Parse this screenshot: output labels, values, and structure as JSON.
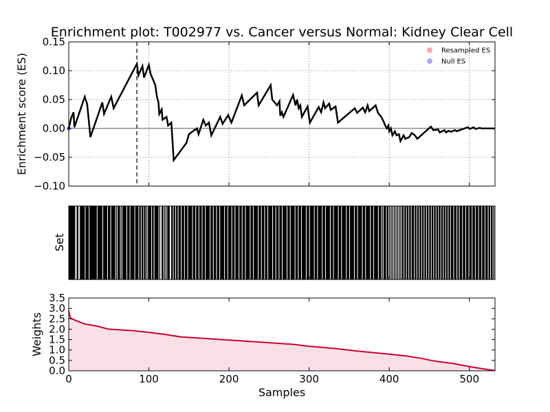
{
  "chart_data": [
    {
      "type": "line",
      "title": "Enrichment plot: T002977 vs. Cancer versus Normal: Kidney Clear Cell",
      "ylabel": "Enrichment score (ES)",
      "xlim": [
        0,
        532
      ],
      "ylim": [
        -0.1,
        0.15
      ],
      "yticks": [
        "0.15",
        "0.10",
        "0.05",
        "0.00",
        "−0.05",
        "−0.10"
      ],
      "ytick_values": [
        0.15,
        0.1,
        0.05,
        0.0,
        -0.05,
        -0.1
      ],
      "grid": true,
      "legend_position": "top-right",
      "legend": [
        {
          "label": "Resampled ES",
          "color": "#ffaaaa"
        },
        {
          "label": "Null ES",
          "color": "#aaaaff"
        }
      ],
      "peak_x": 85,
      "series": [
        {
          "color": "#000000",
          "x": [
            0,
            3,
            6,
            7,
            20,
            23,
            27,
            42,
            44,
            53,
            56,
            85,
            87,
            92,
            94,
            100,
            102,
            108,
            110,
            112,
            113,
            116,
            117,
            122,
            124,
            128,
            131,
            147,
            150,
            160,
            162,
            168,
            171,
            175,
            178,
            189,
            192,
            199,
            203,
            216,
            219,
            235,
            237,
            252,
            254,
            257,
            260,
            263,
            264,
            266,
            268,
            280,
            283,
            285,
            287,
            289,
            291,
            298,
            301,
            312,
            315,
            318,
            320,
            325,
            327,
            333,
            336,
            357,
            360,
            367,
            370,
            373,
            375,
            383,
            386,
            390,
            393,
            395,
            397,
            399,
            400,
            402,
            404,
            407,
            409,
            412,
            414,
            418,
            420,
            425,
            428,
            432,
            435,
            452,
            455,
            461,
            463,
            469,
            471,
            474,
            477,
            482,
            484,
            498,
            501,
            505,
            508,
            513,
            515,
            532
          ],
          "y": [
            0.0,
            0.018,
            0.028,
            0.002,
            0.055,
            0.042,
            -0.015,
            0.045,
            0.025,
            0.055,
            0.035,
            0.112,
            0.092,
            0.108,
            0.088,
            0.11,
            0.095,
            0.075,
            0.055,
            0.045,
            0.025,
            0.033,
            0.015,
            0.02,
            0.005,
            0.01,
            -0.055,
            -0.025,
            -0.01,
            0.0,
            -0.01,
            0.015,
            0.005,
            0.01,
            -0.012,
            0.02,
            0.008,
            0.023,
            0.01,
            0.057,
            0.04,
            0.062,
            0.04,
            0.075,
            0.05,
            0.045,
            0.04,
            0.047,
            0.022,
            0.028,
            0.02,
            0.058,
            0.04,
            0.05,
            0.035,
            0.04,
            0.02,
            0.038,
            0.01,
            0.037,
            0.028,
            0.045,
            0.035,
            0.043,
            0.032,
            0.038,
            0.01,
            0.035,
            0.027,
            0.036,
            0.028,
            0.04,
            0.03,
            0.04,
            0.027,
            0.02,
            0.012,
            0.005,
            0.0,
            0.005,
            -0.005,
            0.0,
            -0.012,
            -0.005,
            -0.012,
            -0.01,
            -0.022,
            -0.012,
            -0.018,
            -0.015,
            -0.008,
            -0.012,
            -0.018,
            0.003,
            -0.003,
            -0.002,
            -0.007,
            -0.003,
            -0.007,
            -0.004,
            -0.006,
            -0.003,
            -0.005,
            0.002,
            -0.001,
            0.002,
            -0.001,
            0.001,
            0.0,
            0.0
          ]
        }
      ]
    },
    {
      "type": "barcode",
      "ylabel": "Set",
      "xlim": [
        0,
        532
      ],
      "series": [
        {
          "color": "#000000",
          "gap_positions": [
            8,
            9,
            12,
            13,
            20,
            25,
            35,
            42,
            48,
            52,
            58,
            60,
            64,
            66,
            72,
            76,
            82,
            87,
            90,
            93,
            96,
            98,
            103,
            106,
            112,
            114,
            115,
            118,
            120,
            122,
            126,
            127,
            130,
            133,
            136,
            140,
            144,
            148,
            154,
            158,
            162,
            166,
            170,
            176,
            180,
            184,
            188,
            194,
            198,
            203,
            207,
            212,
            216,
            220,
            226,
            230,
            236,
            240,
            244,
            248,
            254,
            258,
            262,
            266,
            272,
            276,
            282,
            286,
            290,
            296,
            300,
            306,
            310,
            316,
            320,
            326,
            330,
            336,
            340,
            346,
            350,
            356,
            360,
            366,
            370,
            376,
            380,
            386,
            390,
            392,
            396,
            399,
            401,
            403,
            405,
            407,
            409,
            411,
            413,
            415,
            418,
            421,
            424,
            427,
            431,
            434,
            437,
            440,
            443,
            446,
            449,
            452,
            455,
            458,
            461,
            464,
            467,
            470,
            473,
            476,
            480,
            484,
            487,
            491,
            495,
            499,
            503,
            507,
            511,
            515,
            519,
            523,
            526,
            529,
            531
          ]
        }
      ]
    },
    {
      "type": "area",
      "xlabel": "Samples",
      "ylabel": "Weights",
      "xlim": [
        0,
        532
      ],
      "ylim": [
        0,
        3.5
      ],
      "xticks": [
        0,
        100,
        200,
        300,
        400,
        500
      ],
      "yticks": [
        "3.5",
        "3.0",
        "2.5",
        "2.0",
        "1.5",
        "1.0",
        "0.5",
        "0.0"
      ],
      "ytick_values": [
        3.5,
        3.0,
        2.5,
        2.0,
        1.5,
        1.0,
        0.5,
        0.0
      ],
      "series": [
        {
          "color": "#cc0033",
          "x": [
            0,
            1,
            2,
            4,
            10,
            20,
            35,
            45,
            50,
            80,
            100,
            120,
            140,
            160,
            200,
            220,
            250,
            280,
            300,
            330,
            360,
            400,
            420,
            440,
            450,
            460,
            480,
            500,
            520,
            530,
            532
          ],
          "y": [
            2.9,
            2.7,
            2.55,
            2.5,
            2.4,
            2.25,
            2.15,
            2.05,
            2.0,
            1.93,
            1.85,
            1.75,
            1.63,
            1.58,
            1.48,
            1.43,
            1.35,
            1.27,
            1.18,
            1.08,
            0.95,
            0.8,
            0.72,
            0.6,
            0.52,
            0.45,
            0.35,
            0.2,
            0.08,
            0.02,
            0.01
          ]
        }
      ]
    }
  ]
}
